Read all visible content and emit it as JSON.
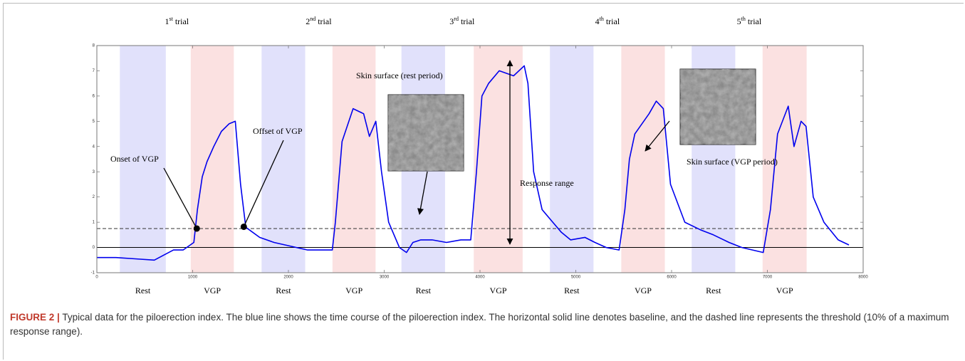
{
  "chart_data": {
    "type": "line",
    "xlim": [
      0,
      8000
    ],
    "xticks": [
      0,
      1000,
      2000,
      3000,
      4000,
      5000,
      6000,
      7000,
      8000
    ],
    "ylim": [
      -1,
      8
    ],
    "yticks": [
      -1,
      0,
      1,
      2,
      3,
      4,
      5,
      6,
      7,
      8
    ],
    "color": "#0000ee",
    "x": [
      0,
      200,
      400,
      600,
      700,
      800,
      900,
      1013,
      1050,
      1100,
      1150,
      1220,
      1300,
      1380,
      1445,
      1500,
      1555,
      1700,
      1850,
      1965,
      2200,
      2458,
      2490,
      2560,
      2675,
      2785,
      2845,
      2912,
      2972,
      3046,
      3158,
      3233,
      3300,
      3382,
      3500,
      3650,
      3800,
      3903,
      3963,
      4020,
      4089,
      4201,
      4350,
      4462,
      4500,
      4560,
      4648,
      4760,
      4850,
      4946,
      5095,
      5200,
      5318,
      5452,
      5512,
      5560,
      5616,
      5765,
      5840,
      5914,
      5989,
      6138,
      6300,
      6436,
      6600,
      6734,
      6957,
      7032,
      7106,
      7218,
      7278,
      7352,
      7404,
      7479,
      7590,
      7739,
      7851
    ],
    "values": [
      -0.4,
      -0.4,
      -0.45,
      -0.5,
      -0.3,
      -0.1,
      -0.1,
      0.2,
      1.5,
      2.8,
      3.4,
      4.0,
      4.6,
      4.9,
      5.0,
      2.5,
      0.8,
      0.4,
      0.2,
      0.1,
      -0.1,
      -0.1,
      1.0,
      4.2,
      5.5,
      5.3,
      4.4,
      5.0,
      3.0,
      1.0,
      0.0,
      -0.2,
      0.2,
      0.3,
      0.3,
      0.2,
      0.3,
      0.3,
      3.0,
      6.0,
      6.5,
      7.0,
      6.8,
      7.2,
      6.5,
      3.0,
      1.5,
      1.0,
      0.6,
      0.3,
      0.4,
      0.2,
      0.0,
      -0.1,
      1.5,
      3.5,
      4.5,
      5.3,
      5.8,
      5.5,
      2.5,
      1.0,
      0.7,
      0.5,
      0.2,
      0.0,
      -0.2,
      1.5,
      4.5,
      5.6,
      4.0,
      5.0,
      4.8,
      2.0,
      1.0,
      0.3,
      0.1
    ],
    "threshold": 0.75,
    "baseline": 0,
    "bands": [
      {
        "label": "Rest",
        "start": 240,
        "end": 720,
        "color": "#e1e1fb"
      },
      {
        "label": "VGP",
        "start": 980,
        "end": 1430,
        "color": "#fbe1e1"
      },
      {
        "label": "Rest",
        "start": 1720,
        "end": 2175,
        "color": "#e1e1fb"
      },
      {
        "label": "VGP",
        "start": 2460,
        "end": 2910,
        "color": "#fbe1e1"
      },
      {
        "label": "Rest",
        "start": 3180,
        "end": 3635,
        "color": "#e1e1fb"
      },
      {
        "label": "VGP",
        "start": 3935,
        "end": 4445,
        "color": "#fbe1e1"
      },
      {
        "label": "Rest",
        "start": 4730,
        "end": 5185,
        "color": "#e1e1fb"
      },
      {
        "label": "VGP",
        "start": 5475,
        "end": 5930,
        "color": "#fbe1e1"
      },
      {
        "label": "Rest",
        "start": 6210,
        "end": 6665,
        "color": "#e1e1fb"
      },
      {
        "label": "VGP",
        "start": 6950,
        "end": 7410,
        "color": "#fbe1e1"
      }
    ],
    "trials": [
      {
        "number": "1",
        "suffix": "st",
        "word": "trial"
      },
      {
        "number": "2",
        "suffix": "nd",
        "word": "trial"
      },
      {
        "number": "3",
        "suffix": "rd",
        "word": "trial"
      },
      {
        "number": "4",
        "suffix": "th",
        "word": "trial"
      },
      {
        "number": "5",
        "suffix": "th",
        "word": "trial"
      }
    ],
    "markers": [
      {
        "x": 1043,
        "y": 0.75
      },
      {
        "x": 1534,
        "y": 0.82
      }
    ],
    "annotations": [
      "Onset of VGP",
      "Offset of VGP",
      "Skin surface (rest period)",
      "Response range",
      "Skin surface (VGP period)"
    ]
  },
  "caption": {
    "label": "FIGURE 2 |",
    "text": "Typical data for the piloerection index. The blue line shows the time course of the piloerection index. The horizontal solid line denotes baseline, and the dashed line represents the threshold (10% of a maximum response range)."
  }
}
